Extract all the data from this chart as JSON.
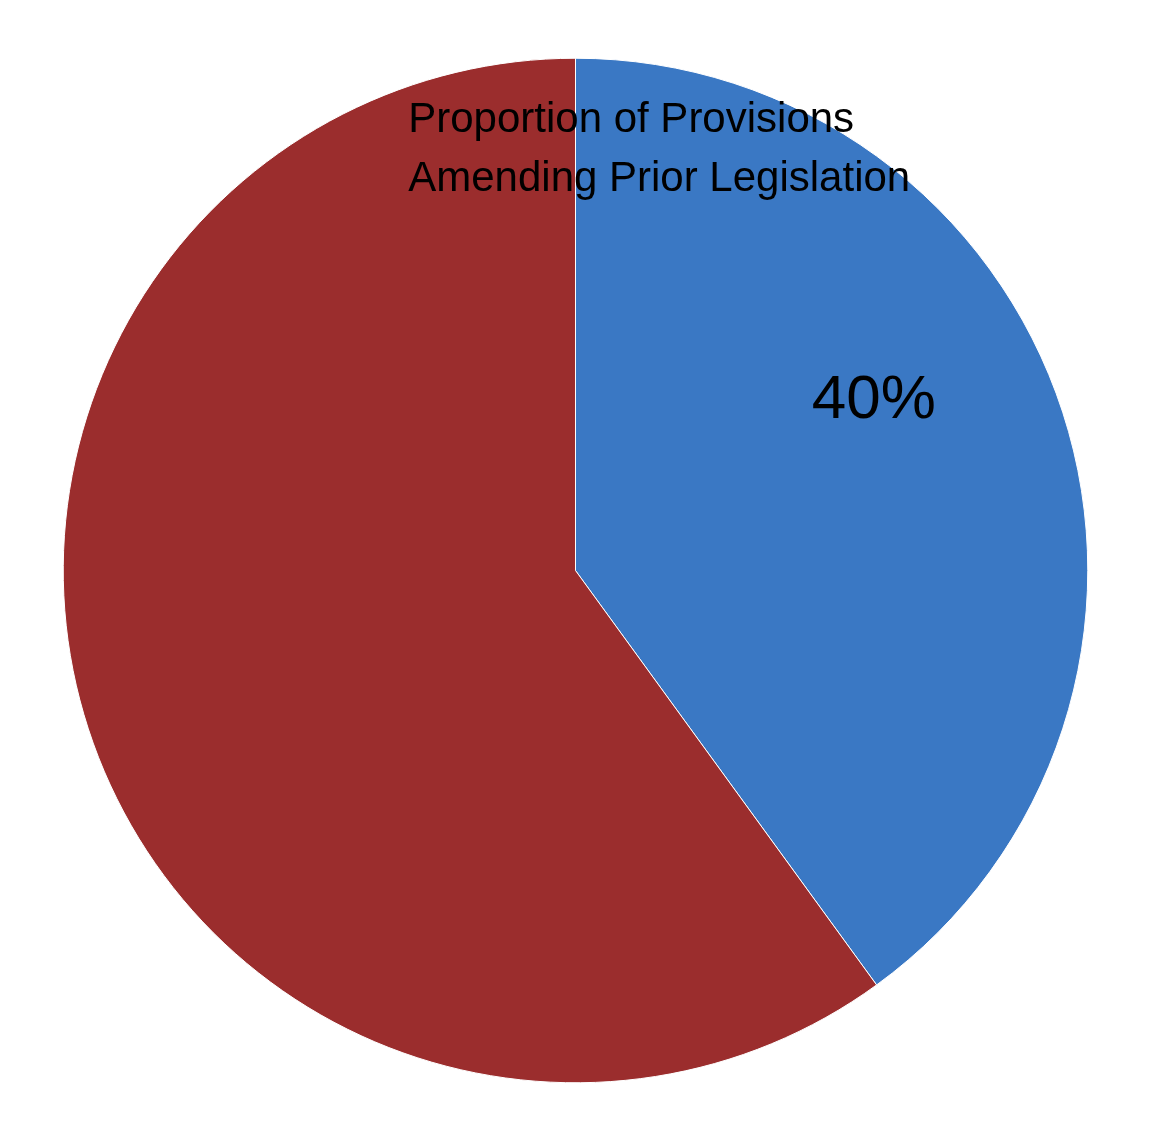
{
  "chart_data": {
    "type": "pie",
    "title": "Proportion of Provisions Amending Prior Legislation",
    "categories": [
      null,
      null
    ],
    "values": [
      40,
      60
    ],
    "colors": [
      "#3a78c4",
      "#9b2d2d"
    ],
    "value_labels": [
      "40%",
      null
    ]
  }
}
